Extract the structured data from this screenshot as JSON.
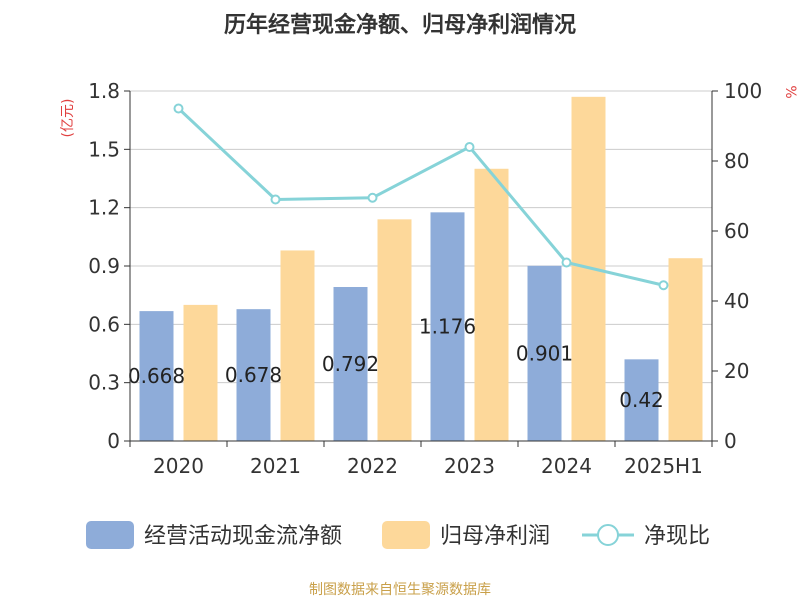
{
  "chart_data": {
    "type": "bar",
    "title": "历年经营现金净额、归母净利润情况",
    "categories": [
      "2020",
      "2021",
      "2022",
      "2023",
      "2024",
      "2025H1"
    ],
    "y_left_label": "(亿元)",
    "y_right_label": "%",
    "y_left_lim": [
      0,
      1.8
    ],
    "y_left_ticks": [
      "0",
      "0.3",
      "0.6",
      "0.9",
      "1.2",
      "1.5",
      "1.8"
    ],
    "y_right_lim": [
      0,
      100
    ],
    "y_right_ticks": [
      "0",
      "20",
      "40",
      "60",
      "80",
      "100"
    ],
    "grid": true,
    "legend_position": "bottom",
    "series": [
      {
        "name": "经营活动现金流净额",
        "type": "bar",
        "axis": "left",
        "color": "#8eacd9",
        "values": [
          0.668,
          0.678,
          0.792,
          1.176,
          0.901,
          0.42
        ],
        "labels": [
          "0.668",
          "0.678",
          "0.792",
          "1.176",
          "0.901",
          "0.42"
        ]
      },
      {
        "name": "归母净利润",
        "type": "bar",
        "axis": "left",
        "color": "#fdd89a",
        "values": [
          0.7,
          0.98,
          1.14,
          1.4,
          1.77,
          0.94
        ]
      },
      {
        "name": "净现比",
        "type": "line",
        "axis": "right",
        "color": "#86d3d8",
        "values": [
          95,
          69,
          69.5,
          84,
          51,
          44.5
        ]
      }
    ],
    "source": "制图数据来自恒生聚源数据库"
  }
}
